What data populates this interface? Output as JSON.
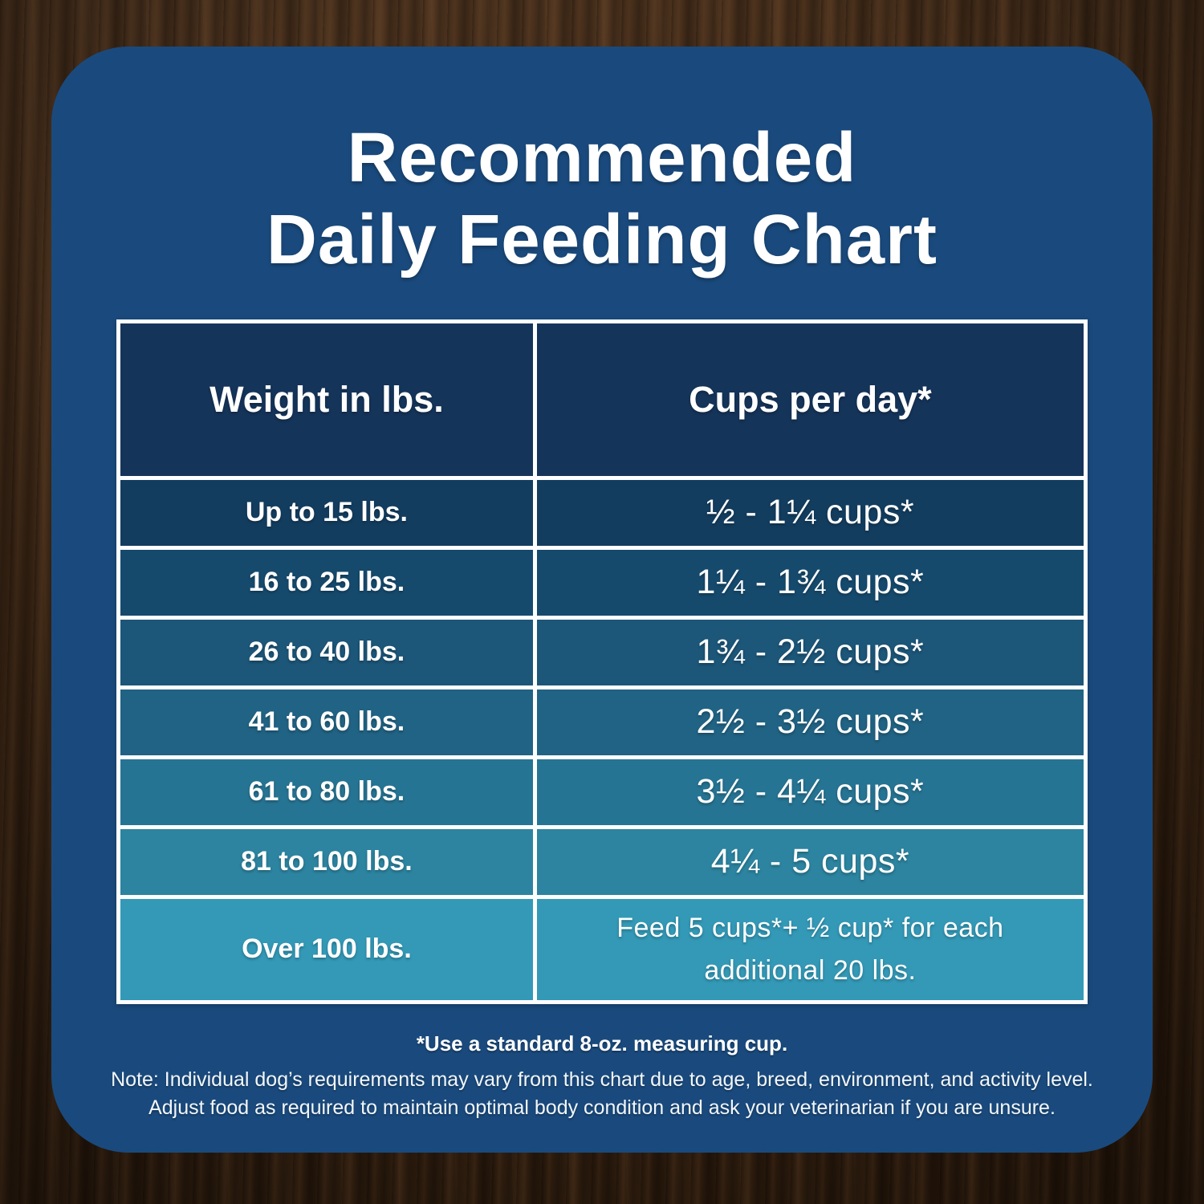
{
  "title": {
    "line1": "Recommended",
    "line2": "Daily Feeding Chart"
  },
  "table": {
    "col1_header": "Weight in lbs.",
    "col2_header": "Cups per day*",
    "rows": [
      {
        "weight": "Up to 15 lbs.",
        "cups": "½ - 1¼ cups*",
        "bg": "#133d5f"
      },
      {
        "weight": "16 to 25 lbs.",
        "cups": "1¼ - 1¾  cups*",
        "bg": "#164a6d"
      },
      {
        "weight": "26 to 40 lbs.",
        "cups": "1¾ - 2½ cups*",
        "bg": "#1c5678"
      },
      {
        "weight": "41 to 60 lbs.",
        "cups": "2½ - 3½ cups*",
        "bg": "#216384"
      },
      {
        "weight": "61 to 80 lbs.",
        "cups": "3½ - 4¼ cups*",
        "bg": "#267493"
      },
      {
        "weight": "81 to 100 lbs.",
        "cups": "4¼ - 5 cups*",
        "bg": "#2c84a0"
      },
      {
        "weight": "Over 100 lbs.",
        "cups": "Feed 5 cups*+ ½ cup* for each additional 20 lbs.",
        "bg": "#3399b7"
      }
    ]
  },
  "footnotes": {
    "measuring_cup": "*Use a standard 8-oz. measuring cup.",
    "note_line1": "Note: Individual dog’s requirements may vary from this chart due to age, breed, environment, and activity level.",
    "note_line2": "Adjust food as required to maintain optimal body condition and ask your veterinarian if you are unsure."
  },
  "colors": {
    "card": "#1a4a7d",
    "header_cell": "#15345a",
    "table_border": "#fdfeff",
    "text": "#ffffff",
    "row_backgrounds": [
      "#133d5f",
      "#164a6d",
      "#1c5678",
      "#216384",
      "#267493",
      "#2c84a0",
      "#3399b7"
    ]
  },
  "chart_data": {
    "type": "table",
    "title": "Recommended Daily Feeding Chart",
    "columns": [
      "Weight in lbs.",
      "Cups per day*"
    ],
    "rows": [
      [
        "Up to 15 lbs.",
        "½ - 1¼ cups*"
      ],
      [
        "16 to 25 lbs.",
        "1¼ - 1¾ cups*"
      ],
      [
        "26 to 40 lbs.",
        "1¾ - 2½ cups*"
      ],
      [
        "41 to 60 lbs.",
        "2½ - 3½ cups*"
      ],
      [
        "61 to 80 lbs.",
        "3½ - 4¼ cups*"
      ],
      [
        "81 to 100 lbs.",
        "4¼ - 5 cups*"
      ],
      [
        "Over 100 lbs.",
        "Feed 5 cups*+ ½ cup* for each additional 20 lbs."
      ]
    ],
    "notes": [
      "*Use a standard 8-oz. measuring cup.",
      "Note: Individual dog’s requirements may vary from this chart due to age, breed, environment, and activity level.",
      "Adjust food as required to maintain optimal body condition and ask your veterinarian if you are unsure."
    ]
  }
}
